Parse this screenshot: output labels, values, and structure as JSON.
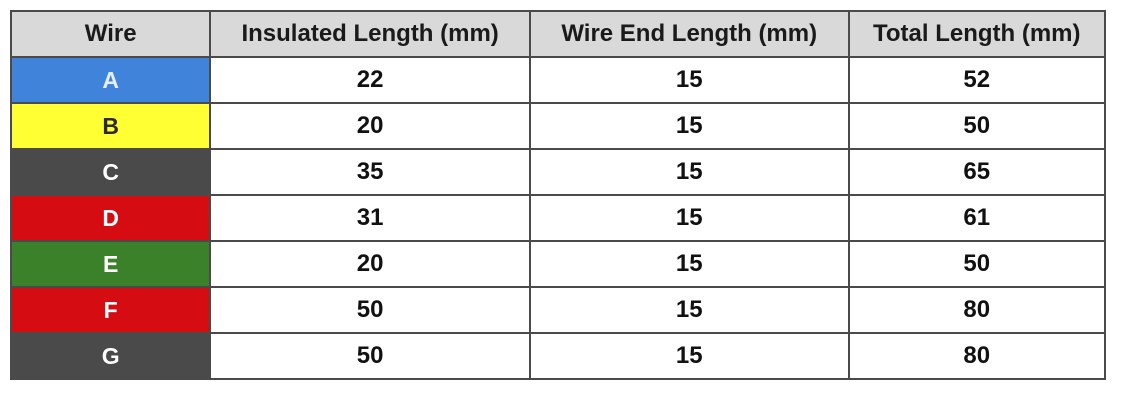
{
  "table": {
    "headers": [
      "Wire",
      "Insulated Length (mm)",
      "Wire End Length (mm)",
      "Total Length (mm)"
    ],
    "rows": [
      {
        "wire": "A",
        "insulated": "22",
        "wire_end": "15",
        "total": "52",
        "color": "#3f83db",
        "text_color": "#e8eef8"
      },
      {
        "wire": "B",
        "insulated": "20",
        "wire_end": "15",
        "total": "50",
        "color": "#ffff33",
        "text_color": "#2a2a2a"
      },
      {
        "wire": "C",
        "insulated": "35",
        "wire_end": "15",
        "total": "65",
        "color": "#4a4a4a",
        "text_color": "#ffffff"
      },
      {
        "wire": "D",
        "insulated": "31",
        "wire_end": "15",
        "total": "61",
        "color": "#d50d12",
        "text_color": "#ffffff"
      },
      {
        "wire": "E",
        "insulated": "20",
        "wire_end": "15",
        "total": "50",
        "color": "#3b8129",
        "text_color": "#ffffff"
      },
      {
        "wire": "F",
        "insulated": "50",
        "wire_end": "15",
        "total": "80",
        "color": "#d50d12",
        "text_color": "#ffffff"
      },
      {
        "wire": "G",
        "insulated": "50",
        "wire_end": "15",
        "total": "80",
        "color": "#4a4a4a",
        "text_color": "#ffffff"
      }
    ]
  }
}
